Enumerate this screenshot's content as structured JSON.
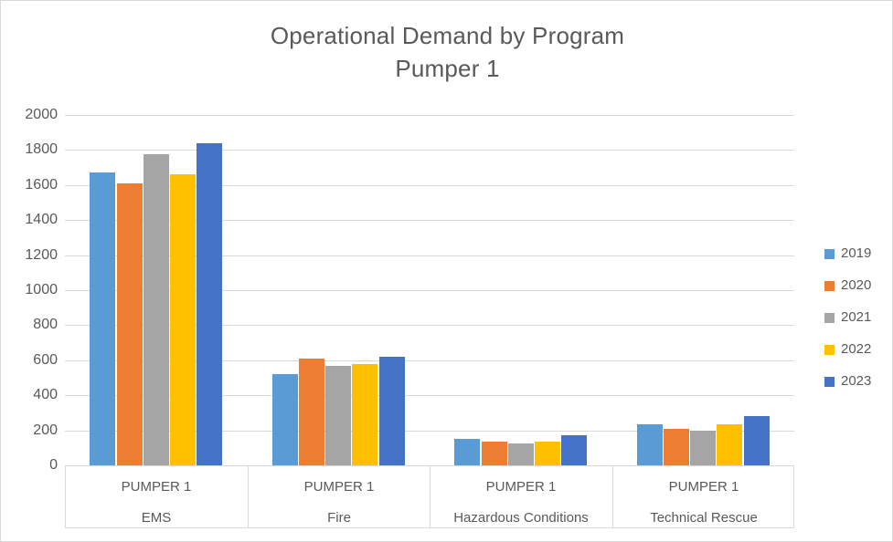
{
  "title": {
    "line1": "Operational Demand by Program",
    "line2": "Pumper 1"
  },
  "colors": {
    "text": "#595959",
    "gridline": "#d9d9d9",
    "axis_line": "#bfbfbf",
    "border": "#d9d9d9"
  },
  "chart_data": {
    "type": "bar",
    "title": "Operational Demand by Program — Pumper 1",
    "categories": [
      "EMS",
      "Fire",
      "Hazardous Conditions",
      "Technical Rescue"
    ],
    "category_group_label": "PUMPER 1",
    "series": [
      {
        "name": "2019",
        "color": "#5B9BD5",
        "values": [
          1670,
          520,
          150,
          235
        ]
      },
      {
        "name": "2020",
        "color": "#ED7D31",
        "values": [
          1610,
          610,
          135,
          210
        ]
      },
      {
        "name": "2021",
        "color": "#A5A5A5",
        "values": [
          1775,
          570,
          125,
          200
        ]
      },
      {
        "name": "2022",
        "color": "#FFC000",
        "values": [
          1660,
          580,
          135,
          235
        ]
      },
      {
        "name": "2023",
        "color": "#4472C4",
        "values": [
          1840,
          620,
          170,
          280
        ]
      }
    ],
    "ylim": [
      0,
      2000
    ],
    "yticks": [
      0,
      200,
      400,
      600,
      800,
      1000,
      1200,
      1400,
      1600,
      1800,
      2000
    ],
    "grid": true,
    "legend_position": "right",
    "xlabel": "",
    "ylabel": ""
  }
}
